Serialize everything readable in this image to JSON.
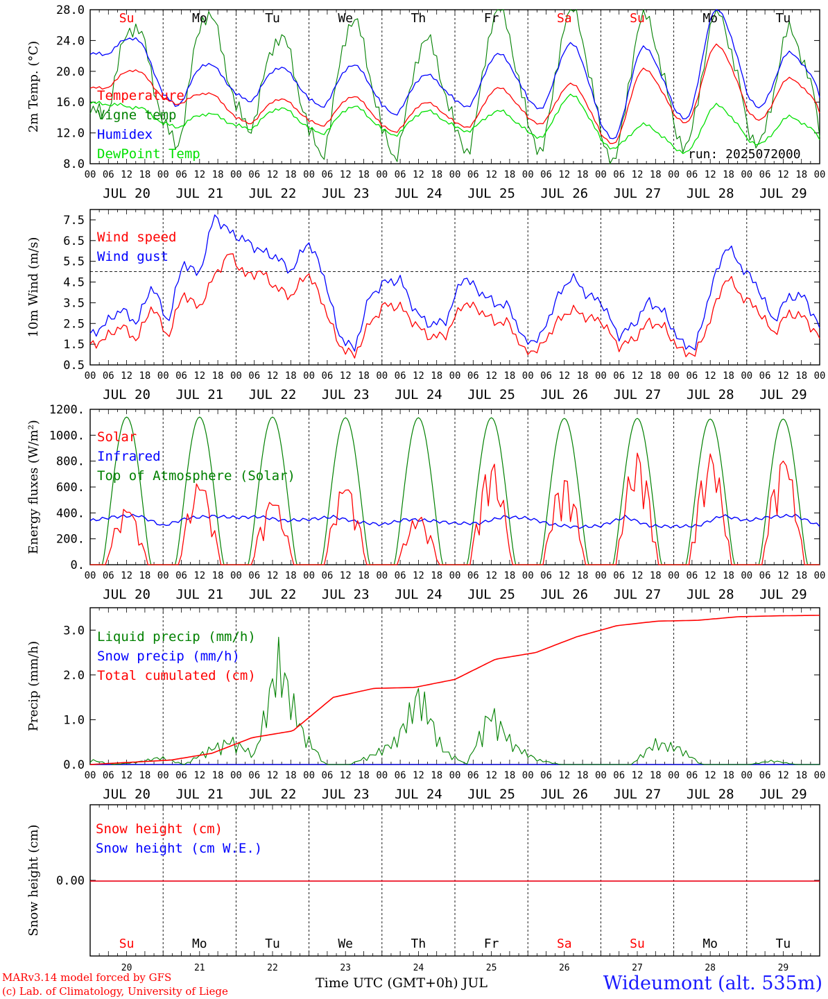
{
  "footer": {
    "credit_line1": "MARv3.14 model forced by GFS",
    "credit_line2": "(c) Lab. of Climatology, University of Liege",
    "station": "Wideumont (alt. 535m)",
    "xaxis_title": "Time UTC (GMT+0h) JUL"
  },
  "colors": {
    "red": "#ff0000",
    "green": "#008000",
    "lightgreen": "#00e000",
    "blue": "#0000ff",
    "black": "#000000"
  },
  "chart_data": [
    {
      "type": "line",
      "ylabel": "2m Temp. (°C)",
      "ylim": [
        8,
        28
      ],
      "yticks": [
        "8.0",
        "12.0",
        "16.0",
        "20.0",
        "24.0",
        "28.0"
      ],
      "x_hour_ticks": [
        "00",
        "06",
        "12",
        "18"
      ],
      "day_labels": [
        "JUL 20",
        "JUL 21",
        "JUL 22",
        "JUL 23",
        "JUL 24",
        "JUL 25",
        "JUL 26",
        "JUL 27",
        "JUL 28",
        "JUL 29"
      ],
      "weekdays": [
        "Su",
        "Mo",
        "Tu",
        "We",
        "Th",
        "Fr",
        "Sa",
        "Su",
        "Mo",
        "Tu"
      ],
      "weekday_colors": [
        "#ff0000",
        "#000000",
        "#000000",
        "#000000",
        "#000000",
        "#000000",
        "#ff0000",
        "#ff0000",
        "#000000",
        "#000000"
      ],
      "annotation": "run: 2025072000",
      "series": [
        {
          "name": "Temperature",
          "color": "#ff0000",
          "min": [
            17.8,
            15.8,
            13.3,
            13.0,
            12.2,
            12.8,
            13.2,
            10.6,
            13.3,
            13.6,
            14.5
          ],
          "max": [
            20.2,
            17.2,
            16.4,
            16.7,
            15.9,
            17.8,
            18.3,
            20.2,
            23.3,
            19.0
          ]
        },
        {
          "name": "Vigne temp",
          "color": "#008000",
          "min": [
            14.5,
            10.7,
            12.8,
            9.5,
            9.3,
            10.0,
            10.0,
            8.5,
            10.3,
            10.5,
            11.0
          ],
          "max": [
            26.0,
            27.5,
            24.5,
            26.5,
            24.0,
            28.0,
            28.0,
            27.0,
            27.5,
            25.0
          ]
        },
        {
          "name": "Humidex",
          "color": "#0000ff",
          "min": [
            22.2,
            15.6,
            16.2,
            15.5,
            14.5,
            15.5,
            15.2,
            11.2,
            13.8,
            15.2,
            16.5
          ],
          "max": [
            24.4,
            21.0,
            20.5,
            20.8,
            19.5,
            22.2,
            23.5,
            23.0,
            28.0,
            22.3
          ]
        },
        {
          "name": "DewPoint Temp",
          "color": "#00e000",
          "min": [
            15.8,
            12.8,
            12.6,
            12.0,
            11.8,
            12.3,
            11.5,
            10.0,
            9.5,
            10.5,
            11.0
          ],
          "max": [
            15.4,
            14.5,
            15.2,
            15.4,
            14.8,
            14.8,
            16.8,
            13.0,
            15.5,
            14.0
          ]
        }
      ]
    },
    {
      "type": "line",
      "ylabel": "10m Wind (m/s)",
      "ylim": [
        0.5,
        8.0
      ],
      "yticks": [
        "0.5",
        "1.5",
        "2.5",
        "3.5",
        "4.5",
        "5.5",
        "6.5",
        "7.5"
      ],
      "reference_line": 5.0,
      "x_hour_ticks": [
        "00",
        "06",
        "12",
        "18"
      ],
      "day_labels": [
        "JUL 20",
        "JUL 21",
        "JUL 22",
        "JUL 23",
        "JUL 24",
        "JUL 25",
        "JUL 26",
        "JUL 27",
        "JUL 28",
        "JUL 29"
      ],
      "series": [
        {
          "name": "Wind speed",
          "color": "#ff0000",
          "values": [
            1.4,
            1.8,
            2.4,
            1.7,
            3.4,
            1.8,
            4.0,
            3.2,
            4.8,
            5.9,
            4.8,
            5.0,
            4.2,
            3.8,
            5.0,
            3.5,
            1.5,
            0.9,
            2.5,
            3.4,
            3.3,
            2.4,
            1.8,
            2.0,
            3.5,
            3.2,
            2.6,
            2.5,
            1.1,
            1.3,
            2.5,
            3.2,
            2.8,
            2.6,
            1.4,
            1.7,
            2.6,
            2.3,
            1.2,
            1.0,
            2.8,
            4.8,
            3.8,
            3.2,
            2.0,
            3.0,
            2.8,
            1.8
          ]
        },
        {
          "name": "Wind gust",
          "color": "#0000ff",
          "values": [
            1.9,
            2.5,
            3.2,
            2.5,
            4.4,
            2.5,
            5.5,
            4.8,
            7.7,
            6.9,
            6.5,
            6.0,
            5.7,
            5.0,
            6.5,
            5.0,
            2.0,
            1.2,
            3.8,
            4.5,
            4.6,
            3.0,
            2.4,
            2.7,
            4.8,
            4.1,
            3.5,
            3.3,
            1.6,
            1.8,
            3.6,
            4.8,
            3.9,
            3.5,
            1.9,
            2.4,
            3.6,
            3.0,
            1.6,
            1.3,
            4.2,
            6.3,
            5.2,
            4.3,
            2.6,
            3.8,
            3.8,
            2.3
          ]
        }
      ]
    },
    {
      "type": "line",
      "ylabel": "Energy fluxes (W/m²)",
      "ylim": [
        0,
        1200
      ],
      "yticks": [
        "0.",
        "200.",
        "400.",
        "600.",
        "800.",
        "1000.",
        "1200."
      ],
      "x_hour_ticks": [
        "00",
        "06",
        "12",
        "18"
      ],
      "day_labels": [
        "JUL 20",
        "JUL 21",
        "JUL 22",
        "JUL 23",
        "JUL 24",
        "JUL 25",
        "JUL 26",
        "JUL 27",
        "JUL 28",
        "JUL 29"
      ],
      "series": [
        {
          "name": "Solar",
          "color": "#ff0000",
          "daily_peak": [
            450,
            640,
            510,
            640,
            380,
            800,
            700,
            870,
            860,
            850
          ]
        },
        {
          "name": "Infrared",
          "color": "#0000ff",
          "values": [
            340,
            370,
            380,
            300,
            360,
            375,
            365,
            370,
            340,
            350,
            370,
            330,
            310,
            350,
            340,
            320,
            320,
            370,
            360,
            310,
            290,
            300,
            370,
            300,
            295,
            300,
            380,
            340,
            370,
            380,
            300
          ]
        },
        {
          "name": "Top of Atmosphere (Solar)",
          "color": "#008000",
          "daily_peak": [
            1140,
            1140,
            1140,
            1135,
            1135,
            1135,
            1130,
            1130,
            1125,
            1125
          ]
        }
      ]
    },
    {
      "type": "line",
      "ylabel": "Precip (mm/h)",
      "ylim": [
        0,
        3.5
      ],
      "yticks": [
        "0.0",
        "1.0",
        "2.0",
        "3.0"
      ],
      "x_hour_ticks": [
        "00",
        "06",
        "12",
        "18"
      ],
      "day_labels": [
        "JUL 20",
        "JUL 21",
        "JUL 22",
        "JUL 23",
        "JUL 24",
        "JUL 25",
        "JUL 26",
        "JUL 27",
        "JUL 28",
        "JUL 29"
      ],
      "series": [
        {
          "name": "Liquid precip (mm/h)",
          "color": "#008000",
          "values": [
            0.1,
            0.0,
            0.05,
            0.15,
            0.0,
            0.3,
            0.5,
            0.2,
            2.2,
            0.7,
            0.0,
            0.0,
            0.2,
            0.5,
            1.5,
            0.3,
            0.0,
            1.1,
            0.4,
            0.1,
            0.0,
            0.0,
            0.0,
            0.0,
            0.45,
            0.35,
            0.0,
            0.0,
            0.0,
            0.08,
            0.0,
            0.0
          ]
        },
        {
          "name": "Snow precip (mm/h)",
          "color": "#0000ff",
          "values": [
            0,
            0
          ]
        },
        {
          "name": "Total cumulated (cm)",
          "color": "#ff0000",
          "values": [
            0.0,
            0.05,
            0.1,
            0.25,
            0.6,
            0.75,
            1.5,
            1.7,
            1.72,
            1.9,
            2.35,
            2.5,
            2.85,
            3.1,
            3.2,
            3.22,
            3.3,
            3.32,
            3.33
          ]
        }
      ]
    },
    {
      "type": "line",
      "ylabel": "Snow height (cm)",
      "yticks": [
        "0.00"
      ],
      "day_numbers": [
        "20",
        "21",
        "22",
        "23",
        "24",
        "25",
        "26",
        "27",
        "28",
        "29"
      ],
      "weekdays": [
        "Su",
        "Mo",
        "Tu",
        "We",
        "Th",
        "Fr",
        "Sa",
        "Su",
        "Mo",
        "Tu"
      ],
      "weekday_colors": [
        "#ff0000",
        "#000000",
        "#000000",
        "#000000",
        "#000000",
        "#000000",
        "#ff0000",
        "#ff0000",
        "#000000",
        "#000000"
      ],
      "series": [
        {
          "name": "Snow height (cm)",
          "color": "#ff0000",
          "values": [
            0,
            0
          ]
        },
        {
          "name": "Snow height (cm W.E.)",
          "color": "#0000ff",
          "values": [
            0,
            0
          ]
        }
      ]
    }
  ]
}
